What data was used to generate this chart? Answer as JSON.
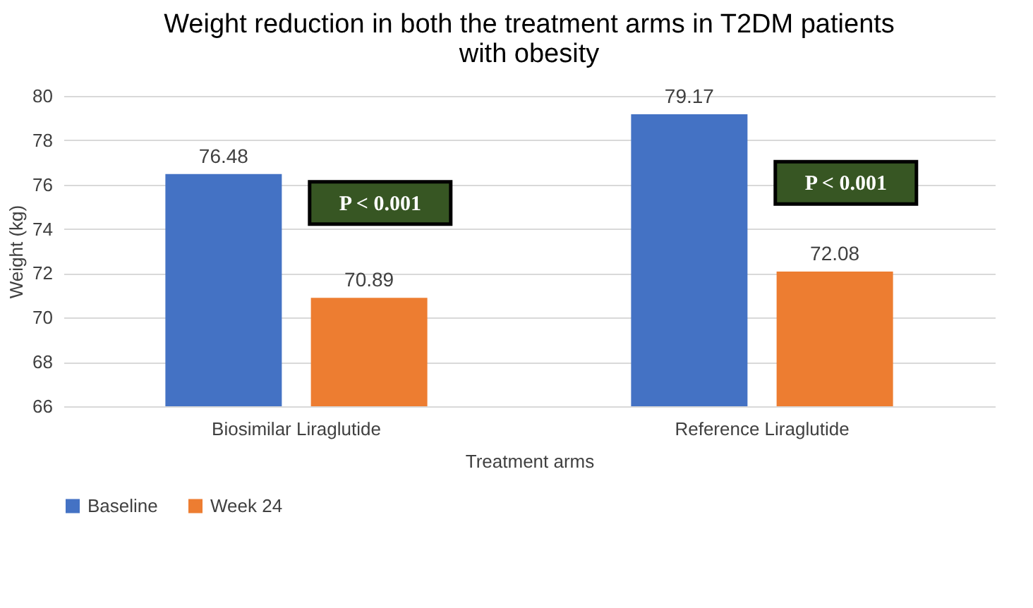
{
  "chart_data": {
    "type": "bar",
    "title": [
      "Weight reduction in both the treatment arms in T2DM patients",
      "with obesity"
    ],
    "xlabel": "Treatment arms",
    "ylabel": "Weight (kg)",
    "categories": [
      "Biosimilar Liraglutide",
      "Reference Liraglutide"
    ],
    "series": [
      {
        "name": "Baseline",
        "color": "#4472c4",
        "values": [
          76.48,
          79.17
        ]
      },
      {
        "name": "Week 24",
        "color": "#ed7d31",
        "values": [
          70.89,
          72.08
        ]
      }
    ],
    "ylim": [
      66,
      80
    ],
    "yticks": [
      66,
      68,
      70,
      72,
      74,
      76,
      78,
      80
    ],
    "grid": "y",
    "legend": "bottom",
    "data_labels": true,
    "annotations": [
      "P < 0.001",
      "P < 0.001"
    ]
  }
}
